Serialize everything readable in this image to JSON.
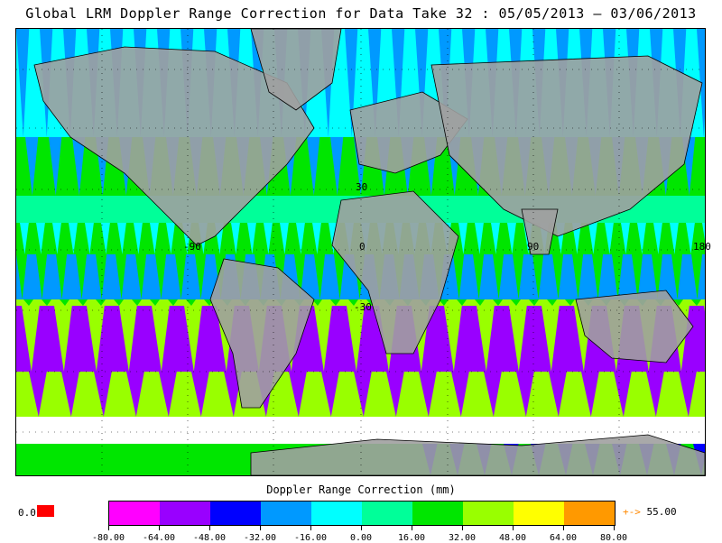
{
  "title": "Global LRM Doppler Range Correction for Data Take 32 : 05/05/2013 – 03/06/2013",
  "map": {
    "lat_labels": [
      "30",
      "-30"
    ],
    "lon_labels": [
      "-90",
      "0",
      "90",
      "180"
    ],
    "land_color": "#a0a0a0",
    "coast_color": "#000000"
  },
  "colorbar": {
    "title": "Doppler Range Correction (mm)",
    "ticks": [
      "-80.00",
      "-64.00",
      "-48.00",
      "-32.00",
      "-16.00",
      "0.00",
      "16.00",
      "32.00",
      "48.00",
      "64.00",
      "80.00"
    ],
    "colors": [
      "#ff00ff",
      "#9900ff",
      "#0000ff",
      "#0099ff",
      "#00ffff",
      "#00ff99",
      "#00e600",
      "#99ff00",
      "#ffff00",
      "#ff9900"
    ],
    "under_label": "0.0",
    "under_color": "#ff0000",
    "over_label": "55.00",
    "over_arrow": "+->",
    "over_color": "#ff8800"
  }
}
